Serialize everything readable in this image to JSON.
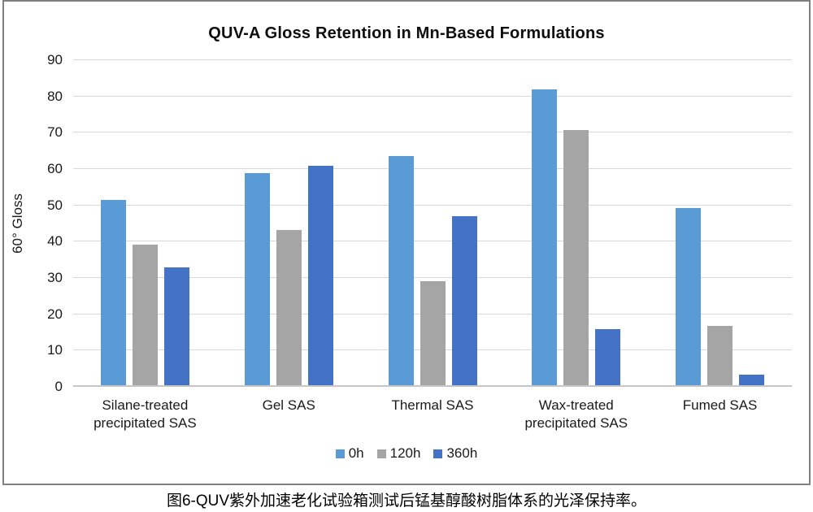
{
  "chart_data": {
    "type": "bar",
    "title": "QUV-A Gloss Retention in Mn-Based Formulations",
    "xlabel": "",
    "ylabel": "60° Gloss",
    "ylim": [
      0,
      90
    ],
    "ytick_step": 10,
    "grid": true,
    "legend_position": "bottom",
    "categories": [
      "Silane-treated precipitated SAS",
      "Gel SAS",
      "Thermal SAS",
      "Wax-treated precipitated SAS",
      "Fumed SAS"
    ],
    "series": [
      {
        "name": "0h",
        "color": "#5B9BD5",
        "values": [
          51.0,
          58.5,
          63.2,
          81.4,
          48.9
        ]
      },
      {
        "name": "120h",
        "color": "#A5A5A5",
        "values": [
          38.8,
          42.7,
          28.6,
          70.2,
          16.4
        ]
      },
      {
        "name": "360h",
        "color": "#4472C4",
        "values": [
          32.4,
          60.4,
          46.5,
          15.4,
          3.0
        ]
      }
    ]
  },
  "caption": "图6-QUV紫外加速老化试验箱测试后锰基醇酸树脂体系的光泽保持率。",
  "colors": {
    "chart_border": "#808080",
    "gridline": "#D9D9D9",
    "axis_line": "#C6C6C6",
    "text": "#1A1A1A"
  }
}
